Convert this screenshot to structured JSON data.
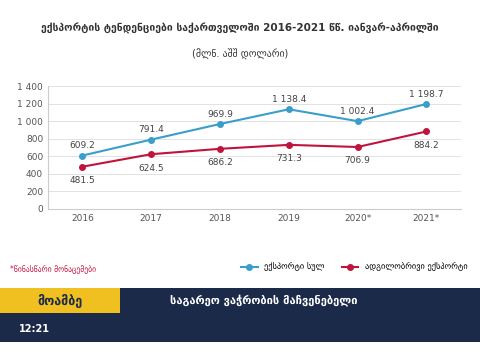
{
  "chart_data": {
    "type": "line",
    "title": "ექსპორტის ტენდენციები საქართველოში 2016-2021 წწ. იანვარ-აპრილში",
    "subtitle": "(მლნ. აშშ დოლარი)",
    "categories": [
      "2016",
      "2017",
      "2018",
      "2019",
      "2020*",
      "2021*"
    ],
    "series": [
      {
        "name": "ექსპორტი სულ",
        "color": "#3a9fc8",
        "marker": "o",
        "line_style": "solid",
        "values": [
          609.2,
          791.4,
          969.9,
          1138.4,
          1002.4,
          1198.7
        ],
        "value_labels": [
          "609.2",
          "791.4",
          "969.9",
          "1 138.4",
          "1 002.4",
          "1 198.7"
        ]
      },
      {
        "name": "ადგილობრივი ექსპორტი",
        "color": "#c0143c",
        "marker": "o",
        "line_style": "solid",
        "values": [
          481.5,
          624.5,
          686.2,
          731.3,
          706.9,
          884.2
        ],
        "value_labels": [
          "481.5",
          "624.5",
          "686.2",
          "731.3",
          "706.9",
          "884.2"
        ]
      }
    ],
    "ylim": [
      0,
      1400
    ],
    "yticks": [
      0,
      200,
      400,
      600,
      800,
      {
        "value": 1000,
        "label": "1 000"
      },
      {
        "value": 1200,
        "label": "1 200"
      },
      {
        "value": 1400,
        "label": "1 400"
      }
    ],
    "grid": true,
    "legend": "lower right",
    "data_labels": true,
    "annotations": [
      "*წინასწარი მონაცემები",
      "მოამბე",
      "საგარეო ვაჭრობის მაჩვენებელი",
      "12:21"
    ]
  }
}
